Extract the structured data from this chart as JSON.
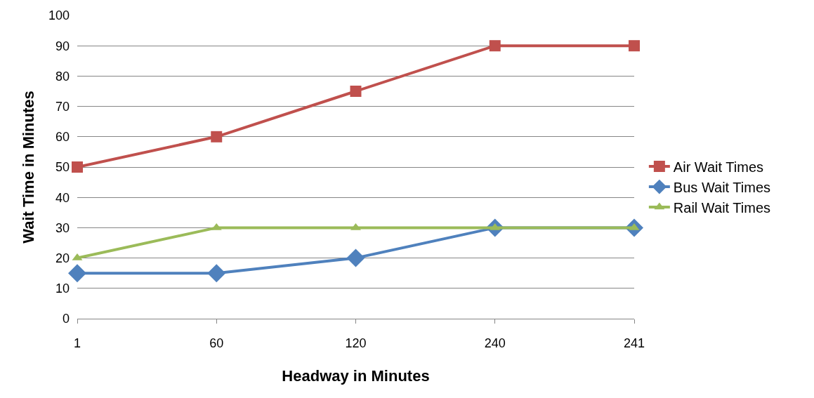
{
  "chart_data": {
    "type": "line",
    "xlabel": "Headway in Minutes",
    "ylabel": "Wait Time in Minutes",
    "categories": [
      "1",
      "60",
      "120",
      "240",
      "241"
    ],
    "series": [
      {
        "name": "Air Wait Times",
        "color": "#c0504d",
        "marker": "square",
        "values": [
          50,
          60,
          75,
          90,
          90
        ]
      },
      {
        "name": "Bus Wait Times",
        "color": "#4f81bd",
        "marker": "diamond",
        "values": [
          15,
          15,
          20,
          30,
          30
        ]
      },
      {
        "name": "Rail Wait Times",
        "color": "#9bbb59",
        "marker": "triangle",
        "values": [
          20,
          30,
          30,
          30,
          30
        ]
      }
    ],
    "ylim": [
      0,
      100
    ],
    "yticks": [
      0,
      10,
      20,
      30,
      40,
      50,
      60,
      70,
      80,
      90,
      100
    ],
    "grid": "y",
    "legend": "right",
    "line_style": "solid"
  }
}
